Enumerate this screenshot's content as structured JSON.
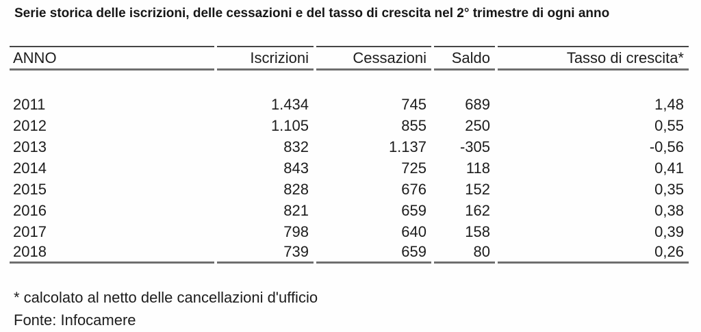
{
  "title": "Serie storica delle iscrizioni, delle cessazioni e del tasso di crescita nel 2° trimestre di ogni anno",
  "table": {
    "columns": {
      "anno": "ANNO",
      "iscrizioni": "Iscrizioni",
      "cessazioni": "Cessazioni",
      "saldo": "Saldo",
      "tasso": "Tasso di crescita*"
    },
    "rows": [
      {
        "anno": "2011",
        "iscrizioni": "1.434",
        "cessazioni": "745",
        "saldo": "689",
        "tasso": "1,48"
      },
      {
        "anno": "2012",
        "iscrizioni": "1.105",
        "cessazioni": "855",
        "saldo": "250",
        "tasso": "0,55"
      },
      {
        "anno": "2013",
        "iscrizioni": "832",
        "cessazioni": "1.137",
        "saldo": "-305",
        "tasso": "-0,56"
      },
      {
        "anno": "2014",
        "iscrizioni": "843",
        "cessazioni": "725",
        "saldo": "118",
        "tasso": "0,41"
      },
      {
        "anno": "2015",
        "iscrizioni": "828",
        "cessazioni": "676",
        "saldo": "152",
        "tasso": "0,35"
      },
      {
        "anno": "2016",
        "iscrizioni": "821",
        "cessazioni": "659",
        "saldo": "162",
        "tasso": "0,38"
      },
      {
        "anno": "2017",
        "iscrizioni": "798",
        "cessazioni": "640",
        "saldo": "158",
        "tasso": "0,39"
      },
      {
        "anno": "2018",
        "iscrizioni": "739",
        "cessazioni": "659",
        "saldo": "80",
        "tasso": "0,26"
      }
    ]
  },
  "footnotes": {
    "asterisk_note": "* calcolato al netto delle cancellazioni d'ufficio",
    "source": "Fonte: Infocamere"
  }
}
